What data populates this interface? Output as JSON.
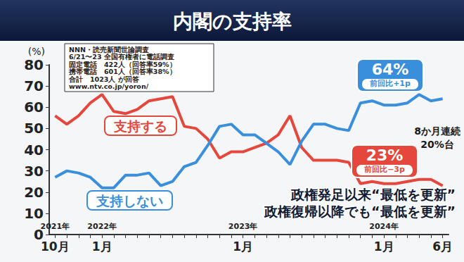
{
  "chart_data": {
    "type": "line",
    "title": "内閣の支持率",
    "ylabel": "(%)",
    "categories": [
      "10月",
      null,
      null,
      null,
      "1月",
      null,
      null,
      null,
      null,
      null,
      null,
      null,
      null,
      null,
      null,
      null,
      "1月",
      null,
      null,
      null,
      null,
      null,
      null,
      null,
      null,
      null,
      null,
      null,
      "1月",
      null,
      null,
      null,
      null,
      "6月"
    ],
    "year_labels": [
      "2021年",
      "2022年",
      "2023年",
      "2024年"
    ],
    "series": [
      {
        "name": "支持する",
        "color": "#e5473d",
        "values": [
          56,
          52,
          56,
          62,
          66,
          58,
          57,
          59,
          63,
          64,
          65,
          51,
          50,
          45,
          36,
          39,
          39,
          41,
          43,
          47,
          56,
          41,
          35,
          35,
          35,
          34,
          24,
          25,
          24,
          24,
          25,
          26,
          26,
          23
        ],
        "value_labels": [
          null,
          null,
          null,
          null,
          null,
          null,
          null,
          null,
          null,
          null,
          null,
          null,
          null,
          null,
          null,
          null,
          null,
          null,
          null,
          null,
          null,
          null,
          null,
          null,
          null,
          null,
          null,
          null,
          null,
          null,
          null,
          null,
          null,
          "23%"
        ],
        "annotation": "前回比−3p"
      },
      {
        "name": "支持しない",
        "color": "#3a8fdc",
        "values": [
          27,
          30,
          29,
          27,
          22,
          22,
          28,
          28,
          29,
          23,
          25,
          32,
          34,
          42,
          51,
          52,
          47,
          47,
          43,
          39,
          33,
          44,
          52,
          52,
          50,
          49,
          62,
          63,
          61,
          61,
          62,
          66,
          63,
          64
        ],
        "value_labels": [
          null,
          null,
          null,
          null,
          null,
          null,
          null,
          null,
          null,
          null,
          null,
          null,
          null,
          null,
          null,
          null,
          null,
          null,
          null,
          null,
          null,
          null,
          null,
          null,
          null,
          null,
          null,
          null,
          null,
          null,
          null,
          null,
          null,
          "64%"
        ],
        "annotation": "前回比+1p"
      }
    ],
    "ylim": [
      0,
      80
    ],
    "yticks": [
      0,
      10,
      20,
      30,
      40,
      50,
      60,
      70,
      80
    ],
    "grid": false,
    "notes": [
      "8か月連続",
      "20%台"
    ],
    "record_notes": [
      "政権発足以来“最低を更新”",
      "政権復帰以降でも“最低を更新”"
    ],
    "source": [
      "NNN・読売新聞世論調査",
      "6/21〜23 全国有権者に電話調査",
      "固定電話　422人（回答率59%）",
      "携帯電話　601人（回答率38%）",
      "合計　1023人 が回答",
      "www.ntv.co.jp/yoron/"
    ]
  }
}
